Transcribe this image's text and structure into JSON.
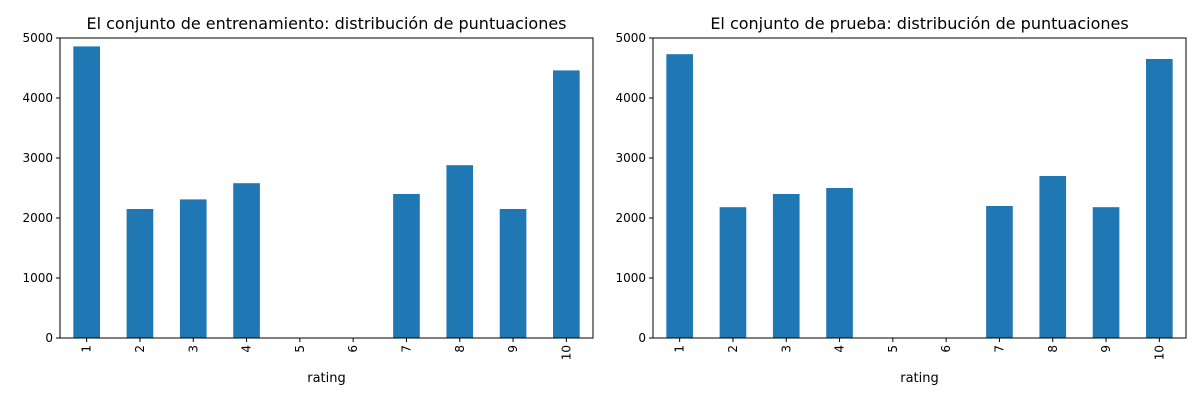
{
  "chart_data": [
    {
      "type": "bar",
      "title": "El conjunto de entrenamiento: distribución de puntuaciones",
      "xlabel": "rating",
      "ylabel": "",
      "categories": [
        "1",
        "2",
        "3",
        "4",
        "5",
        "6",
        "7",
        "8",
        "9",
        "10"
      ],
      "values": [
        4860,
        2150,
        2310,
        2580,
        0,
        0,
        2400,
        2880,
        2150,
        4460
      ],
      "ylim": [
        0,
        5000
      ],
      "yticks": [
        "0",
        "1000",
        "2000",
        "3000",
        "4000",
        "5000"
      ],
      "grid": false,
      "legend": "none",
      "bar_color": "#1f77b4"
    },
    {
      "type": "bar",
      "title": "El conjunto de prueba: distribución de puntuaciones",
      "xlabel": "rating",
      "ylabel": "",
      "categories": [
        "1",
        "2",
        "3",
        "4",
        "5",
        "6",
        "7",
        "8",
        "9",
        "10"
      ],
      "values": [
        4730,
        2180,
        2400,
        2500,
        0,
        0,
        2200,
        2700,
        2180,
        4650
      ],
      "ylim": [
        0,
        5000
      ],
      "yticks": [
        "0",
        "1000",
        "2000",
        "3000",
        "4000",
        "5000"
      ],
      "grid": false,
      "legend": "none",
      "bar_color": "#1f77b4"
    }
  ]
}
